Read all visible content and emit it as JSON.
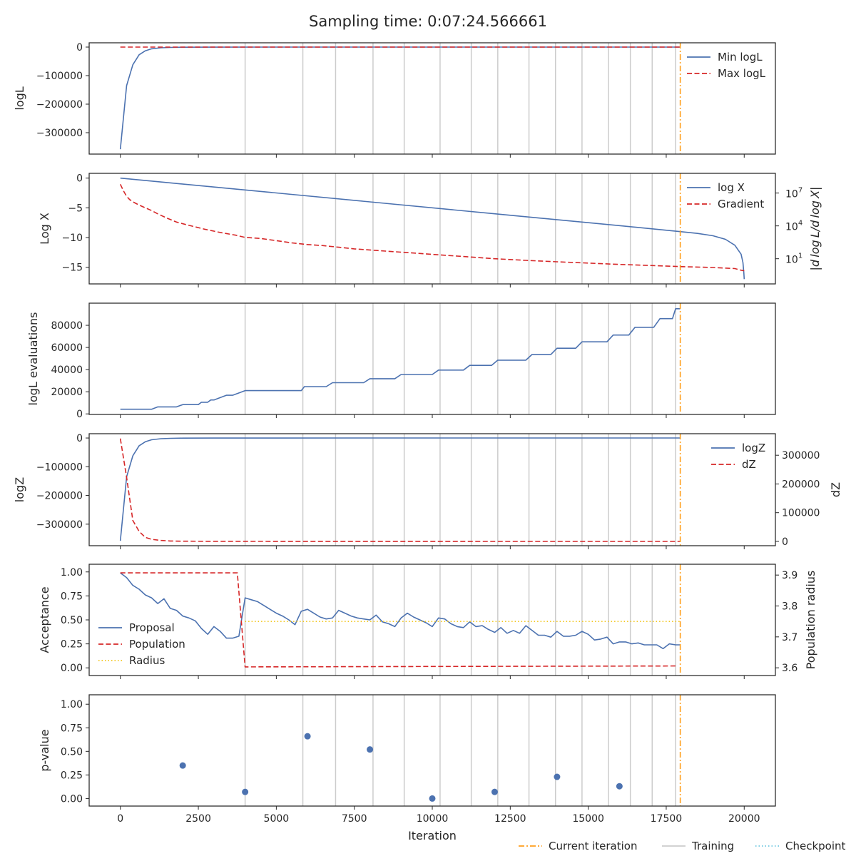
{
  "figure_title": "Sampling time: 0:07:24.566661",
  "colors": {
    "blue": "#4c72b0",
    "red": "#d62728",
    "yellow": "#f2c61f",
    "orange": "#ff9f1c",
    "training": "#cccccc",
    "checkpoint": "#6fc8e0",
    "axis": "#262626"
  },
  "bottom_legend": [
    {
      "label": "Current iteration",
      "style": "dashdot",
      "color": "#ff9f1c"
    },
    {
      "label": "Training",
      "style": "solid",
      "color": "#cccccc"
    },
    {
      "label": "Checkpoint",
      "style": "dotted",
      "color": "#6fc8e0"
    }
  ],
  "chart_data": [
    {
      "type": "line",
      "panel": "logL",
      "ylabel": "logL",
      "xlim": [
        -1000,
        21000
      ],
      "ylim": [
        -375000,
        15000
      ],
      "yticks": [
        0,
        -100000,
        -200000,
        -300000
      ],
      "ytick_labels": [
        "0",
        "−100000",
        "−200000",
        "−300000"
      ],
      "current_iteration": 17950,
      "training_iterations": [
        4000,
        5850,
        6900,
        8100,
        9100,
        10250,
        11250,
        12100,
        13100,
        13950,
        14800,
        15650,
        16350,
        17050,
        17800
      ],
      "legend": {
        "position": "top-right",
        "entries": [
          "Min logL",
          "Max logL"
        ]
      },
      "series": [
        {
          "name": "Min logL",
          "style": "solid",
          "color": "#4c72b0",
          "x": [
            0,
            200,
            400,
            600,
            800,
            1000,
            1300,
            1600,
            2000,
            3000,
            5000,
            8000,
            12000,
            17950
          ],
          "y": [
            -358000,
            -135000,
            -62000,
            -27000,
            -13000,
            -6000,
            -2500,
            -1200,
            -500,
            -150,
            -60,
            -25,
            -10,
            -3
          ]
        },
        {
          "name": "Max logL",
          "style": "dashed",
          "color": "#d62728",
          "x": [
            0,
            17950
          ],
          "y": [
            0,
            0
          ]
        }
      ]
    },
    {
      "type": "line",
      "panel": "logX",
      "ylabel": "Log X",
      "ylabel_right": "|d log L/d log X|",
      "xlim": [
        -1000,
        21000
      ],
      "ylim": [
        -17.8,
        0.8
      ],
      "yticks": [
        0,
        -5,
        -10,
        -15
      ],
      "ytick_labels": [
        "0",
        "−5",
        "−10",
        "−15"
      ],
      "y2_scale": "log",
      "y2lim_log10": [
        -1.3,
        8.8
      ],
      "y2ticks": [
        {
          "base": "10",
          "exp": "7"
        },
        {
          "base": "10",
          "exp": "4"
        },
        {
          "base": "10",
          "exp": "1"
        }
      ],
      "current_iteration": 17950,
      "training_iterations": [
        4000,
        5850,
        6900,
        8100,
        9100,
        10250,
        11250,
        12100,
        13100,
        13950,
        14800,
        15650,
        16350,
        17050,
        17800
      ],
      "legend": {
        "position": "top-right",
        "entries": [
          "log X",
          "Gradient"
        ]
      },
      "series": [
        {
          "name": "log X",
          "style": "solid",
          "color": "#4c72b0",
          "axis": "left",
          "x": [
            0,
            4000,
            8000,
            12000,
            16000,
            17950,
            18500,
            19000,
            19400,
            19700,
            19900,
            19960,
            19990,
            20000
          ],
          "y": [
            0,
            -2.0,
            -4.0,
            -6.0,
            -8.0,
            -9.0,
            -9.3,
            -9.7,
            -10.3,
            -11.3,
            -12.8,
            -14.2,
            -16.0,
            -17.0
          ]
        },
        {
          "name": "Gradient",
          "style": "dashed",
          "color": "#d62728",
          "axis": "right",
          "scale": "log10",
          "x": [
            0,
            100,
            200,
            300,
            400,
            600,
            800,
            1000,
            1200,
            1500,
            1800,
            2200,
            2700,
            3200,
            3700,
            4000,
            4500,
            5000,
            5500,
            6000,
            6500,
            7000,
            7500,
            8000,
            8500,
            9000,
            9500,
            10000,
            11000,
            12000,
            13000,
            14000,
            15000,
            16000,
            17000,
            18000,
            19000,
            19700,
            19900,
            20000
          ],
          "y": [
            7.8,
            7.2,
            6.7,
            6.4,
            6.2,
            5.9,
            5.65,
            5.4,
            5.1,
            4.7,
            4.35,
            4.05,
            3.7,
            3.4,
            3.15,
            2.95,
            2.85,
            2.65,
            2.45,
            2.3,
            2.2,
            2.05,
            1.9,
            1.8,
            1.7,
            1.6,
            1.5,
            1.4,
            1.2,
            1.0,
            0.85,
            0.72,
            0.6,
            0.48,
            0.38,
            0.28,
            0.2,
            0.1,
            -0.05,
            -0.1
          ]
        }
      ]
    },
    {
      "type": "line",
      "panel": "evaluations",
      "ylabel": "logL evaluations",
      "xlim": [
        -1000,
        21000
      ],
      "ylim": [
        -500,
        100000
      ],
      "yticks": [
        0,
        20000,
        40000,
        60000,
        80000
      ],
      "ytick_labels": [
        "0",
        "20000",
        "40000",
        "60000",
        "80000"
      ],
      "current_iteration": 17950,
      "training_iterations": [
        4000,
        5850,
        6900,
        8100,
        9100,
        10250,
        11250,
        12100,
        13100,
        13950,
        14800,
        15650,
        16350,
        17050,
        17800
      ],
      "series": [
        {
          "name": "",
          "style": "solid",
          "color": "#4c72b0",
          "x": [
            0,
            1000,
            1200,
            1800,
            2000,
            2500,
            2600,
            2800,
            2900,
            3000,
            3200,
            3400,
            3600,
            3800,
            4000,
            5800,
            5900,
            6600,
            6800,
            7800,
            8000,
            8800,
            9000,
            10000,
            10200,
            11000,
            11200,
            11900,
            12100,
            13000,
            13200,
            13800,
            14000,
            14600,
            14800,
            15600,
            15800,
            16300,
            16500,
            17100,
            17300,
            17700,
            17800,
            17950
          ],
          "y": [
            4200,
            4200,
            6300,
            6300,
            8400,
            8400,
            10500,
            10500,
            12600,
            12600,
            14700,
            16800,
            16800,
            18900,
            21000,
            21000,
            24600,
            24600,
            28200,
            28200,
            31800,
            31800,
            35600,
            35600,
            39600,
            39600,
            43800,
            43800,
            48500,
            48500,
            53700,
            53700,
            59300,
            59300,
            65100,
            65100,
            71200,
            71200,
            78200,
            78200,
            86000,
            86000,
            95000,
            95000
          ]
        }
      ]
    },
    {
      "type": "line",
      "panel": "logZ",
      "ylabel": "logZ",
      "ylabel_right": "dZ",
      "xlim": [
        -1000,
        21000
      ],
      "ylim": [
        -375000,
        15000
      ],
      "yticks": [
        0,
        -100000,
        -200000,
        -300000
      ],
      "ytick_labels": [
        "0",
        "−100000",
        "−200000",
        "−300000"
      ],
      "y2lim": [
        -15000,
        375000
      ],
      "y2ticks": [
        0,
        100000,
        200000,
        300000
      ],
      "y2tick_labels": [
        "0",
        "100000",
        "200000",
        "300000"
      ],
      "current_iteration": 17950,
      "training_iterations": [
        4000,
        5850,
        6900,
        8100,
        9100,
        10250,
        11250,
        12100,
        13100,
        13950,
        14800,
        15650,
        16350,
        17050,
        17800
      ],
      "legend": {
        "position": "top-right",
        "entries": [
          "logZ",
          "dZ"
        ]
      },
      "series": [
        {
          "name": "logZ",
          "style": "solid",
          "color": "#4c72b0",
          "axis": "left",
          "x": [
            0,
            200,
            400,
            600,
            800,
            1000,
            1300,
            1600,
            2000,
            3000,
            5000,
            8000,
            12000,
            17950
          ],
          "y": [
            -358000,
            -135000,
            -62000,
            -27000,
            -13000,
            -6000,
            -2500,
            -1200,
            -500,
            -150,
            -60,
            -25,
            -10,
            -3
          ]
        },
        {
          "name": "dZ",
          "style": "dashed",
          "color": "#d62728",
          "axis": "right",
          "x": [
            0,
            200,
            400,
            600,
            800,
            1000,
            1300,
            1600,
            2000,
            3000,
            5000,
            8000,
            12000,
            17950
          ],
          "y": [
            358000,
            223000,
            73000,
            35000,
            14000,
            7000,
            3500,
            1300,
            700,
            350,
            90,
            35,
            15,
            7
          ]
        }
      ]
    },
    {
      "type": "line",
      "panel": "acceptance",
      "ylabel": "Acceptance",
      "ylabel_right": "Population radius",
      "xlim": [
        -1000,
        21000
      ],
      "ylim": [
        -0.08,
        1.08
      ],
      "yticks": [
        0,
        0.25,
        0.5,
        0.75,
        1.0
      ],
      "ytick_labels": [
        "0.00",
        "0.25",
        "0.50",
        "0.75",
        "1.00"
      ],
      "y2lim": [
        3.575,
        3.935
      ],
      "y2ticks": [
        3.6,
        3.7,
        3.8,
        3.9
      ],
      "y2tick_labels": [
        "3.6",
        "3.7",
        "3.8",
        "3.9"
      ],
      "current_iteration": 17950,
      "training_iterations": [
        4000,
        5850,
        6900,
        8100,
        9100,
        10250,
        11250,
        12100,
        13100,
        13950,
        14800,
        15650,
        16350,
        17050,
        17800
      ],
      "legend": {
        "position": "lower-left",
        "entries": [
          "Proposal",
          "Population",
          "Radius"
        ]
      },
      "series": [
        {
          "name": "Proposal",
          "style": "solid",
          "color": "#4c72b0",
          "axis": "left",
          "x": [
            0,
            200,
            400,
            600,
            800,
            1000,
            1200,
            1400,
            1600,
            1800,
            2000,
            2200,
            2400,
            2600,
            2800,
            3000,
            3200,
            3400,
            3600,
            3800,
            4000,
            4200,
            4400,
            4600,
            4800,
            5000,
            5200,
            5400,
            5600,
            5800,
            6000,
            6200,
            6400,
            6600,
            6800,
            7000,
            7200,
            7400,
            7600,
            7800,
            8000,
            8200,
            8400,
            8600,
            8800,
            9000,
            9200,
            9400,
            9600,
            9800,
            10000,
            10200,
            10400,
            10600,
            10800,
            11000,
            11200,
            11400,
            11600,
            11800,
            12000,
            12200,
            12400,
            12600,
            12800,
            13000,
            13200,
            13400,
            13600,
            13800,
            14000,
            14200,
            14400,
            14600,
            14800,
            15000,
            15200,
            15400,
            15600,
            15800,
            16000,
            16200,
            16400,
            16600,
            16800,
            17000,
            17200,
            17400,
            17600,
            17800,
            17950
          ],
          "y": [
            0.99,
            0.94,
            0.86,
            0.82,
            0.76,
            0.73,
            0.67,
            0.72,
            0.62,
            0.6,
            0.54,
            0.52,
            0.49,
            0.41,
            0.35,
            0.43,
            0.38,
            0.31,
            0.31,
            0.33,
            0.73,
            0.71,
            0.69,
            0.65,
            0.61,
            0.57,
            0.54,
            0.5,
            0.45,
            0.59,
            0.61,
            0.57,
            0.53,
            0.51,
            0.52,
            0.6,
            0.57,
            0.54,
            0.52,
            0.51,
            0.5,
            0.55,
            0.48,
            0.46,
            0.43,
            0.52,
            0.57,
            0.53,
            0.5,
            0.47,
            0.43,
            0.52,
            0.51,
            0.46,
            0.43,
            0.42,
            0.48,
            0.43,
            0.44,
            0.4,
            0.37,
            0.42,
            0.36,
            0.39,
            0.36,
            0.44,
            0.39,
            0.34,
            0.34,
            0.32,
            0.38,
            0.33,
            0.33,
            0.34,
            0.38,
            0.35,
            0.29,
            0.3,
            0.32,
            0.25,
            0.27,
            0.27,
            0.25,
            0.26,
            0.24,
            0.24,
            0.24,
            0.2,
            0.25,
            0.24,
            0.24
          ]
        },
        {
          "name": "Population",
          "style": "dashed",
          "color": "#d62728",
          "axis": "left",
          "x": [
            0,
            3750,
            4000,
            17800
          ],
          "y": [
            0.99,
            0.99,
            0.01,
            0.02
          ]
        },
        {
          "name": "Radius",
          "style": "dotted",
          "color": "#f2c61f",
          "axis": "right",
          "x": [
            4000,
            17950
          ],
          "y": [
            3.75,
            3.75
          ]
        }
      ]
    },
    {
      "type": "scatter",
      "panel": "pvalue",
      "ylabel": "p-value",
      "xlabel": "Iteration",
      "xlim": [
        -1000,
        21000
      ],
      "ylim": [
        -0.08,
        1.1
      ],
      "yticks": [
        0,
        0.25,
        0.5,
        0.75,
        1.0
      ],
      "ytick_labels": [
        "0.00",
        "0.25",
        "0.50",
        "0.75",
        "1.00"
      ],
      "xticks": [
        0,
        2500,
        5000,
        7500,
        10000,
        12500,
        15000,
        17500,
        20000
      ],
      "xtick_labels": [
        "0",
        "2500",
        "5000",
        "7500",
        "10000",
        "12500",
        "15000",
        "17500",
        "20000"
      ],
      "current_iteration": 17950,
      "training_iterations": [
        4000,
        5850,
        6900,
        8100,
        9100,
        10250,
        11250,
        12100,
        13100,
        13950,
        14800,
        15650,
        16350,
        17050,
        17800
      ],
      "series": [
        {
          "name": "",
          "color": "#4c72b0",
          "x": [
            2000,
            4000,
            6000,
            8000,
            10000,
            12000,
            14000,
            16000
          ],
          "y": [
            0.35,
            0.07,
            0.66,
            0.52,
            0.0,
            0.07,
            0.23,
            0.13
          ]
        }
      ]
    }
  ]
}
